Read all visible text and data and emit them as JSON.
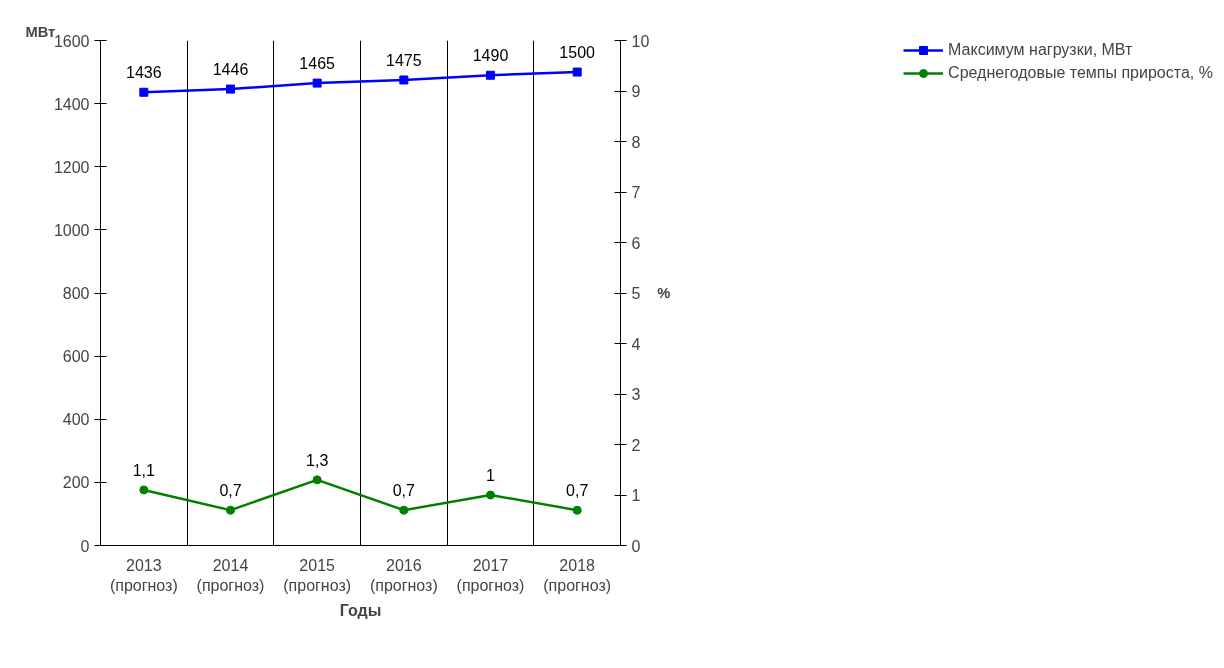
{
  "chart_data": {
    "type": "line",
    "categories": [
      "2013\n(прогноз)",
      "2014\n(прогноз)",
      "2015\n(прогноз)",
      "2016\n(прогноз)",
      "2017\n(прогноз)",
      "2018\n(прогноз)"
    ],
    "xlabel": "Годы",
    "ylabel": "МВт",
    "y2label": "%",
    "series": [
      {
        "name": "Максимум нагрузки, МВт",
        "color": "#0000ff",
        "marker": "square",
        "values": [
          1436,
          1446,
          1465,
          1475,
          1490,
          1500
        ],
        "value_labels": [
          "1436",
          "1446",
          "1465",
          "1475",
          "1490",
          "1500"
        ]
      },
      {
        "name": "Среднегодовые темпы прироста, %",
        "color": "#008000",
        "marker": "circle",
        "axis": "y2",
        "values": [
          1.1,
          0.7,
          1.3,
          0.7,
          1,
          0.7
        ],
        "value_labels": [
          "1,1",
          "0,7",
          "1,3",
          "0,7",
          "1",
          "0,7"
        ]
      }
    ],
    "ylim": [
      0,
      1600
    ],
    "yticks": [
      0,
      200,
      400,
      600,
      800,
      1000,
      1200,
      1400,
      1600
    ],
    "y2lim": [
      0,
      10
    ],
    "y2ticks": [
      0,
      1,
      2,
      3,
      4,
      5,
      6,
      7,
      8,
      9,
      10
    ],
    "grid": "x",
    "legend": "right"
  }
}
